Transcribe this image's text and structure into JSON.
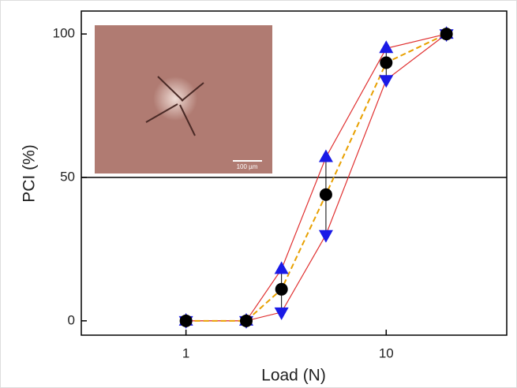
{
  "chart_data": {
    "type": "line",
    "xlabel": "Load (N)",
    "ylabel": "PCI (%)",
    "xscale": "log",
    "xlim": [
      0.3,
      40
    ],
    "ylim": [
      -5,
      108
    ],
    "xticks": [
      1,
      10
    ],
    "yticks": [
      0,
      50,
      100
    ],
    "hline": 50,
    "x": [
      1,
      2,
      3,
      5,
      10,
      20
    ],
    "series": [
      {
        "color": "#e03030",
        "marker": "triangle-up",
        "marker_color": "#1a1ae6",
        "values": [
          0,
          0,
          18,
          57,
          95,
          100
        ]
      },
      {
        "color": "#e03030",
        "marker": "triangle-down",
        "marker_color": "#1a1ae6",
        "values": [
          0,
          0,
          3,
          30,
          84,
          100
        ]
      },
      {
        "color": "#e8a000",
        "dashed": true,
        "marker": "circle",
        "marker_color": "#000000",
        "values": [
          0,
          0,
          11,
          44,
          90,
          100
        ]
      }
    ],
    "inset": {
      "scale_bar": "100 µm"
    }
  }
}
